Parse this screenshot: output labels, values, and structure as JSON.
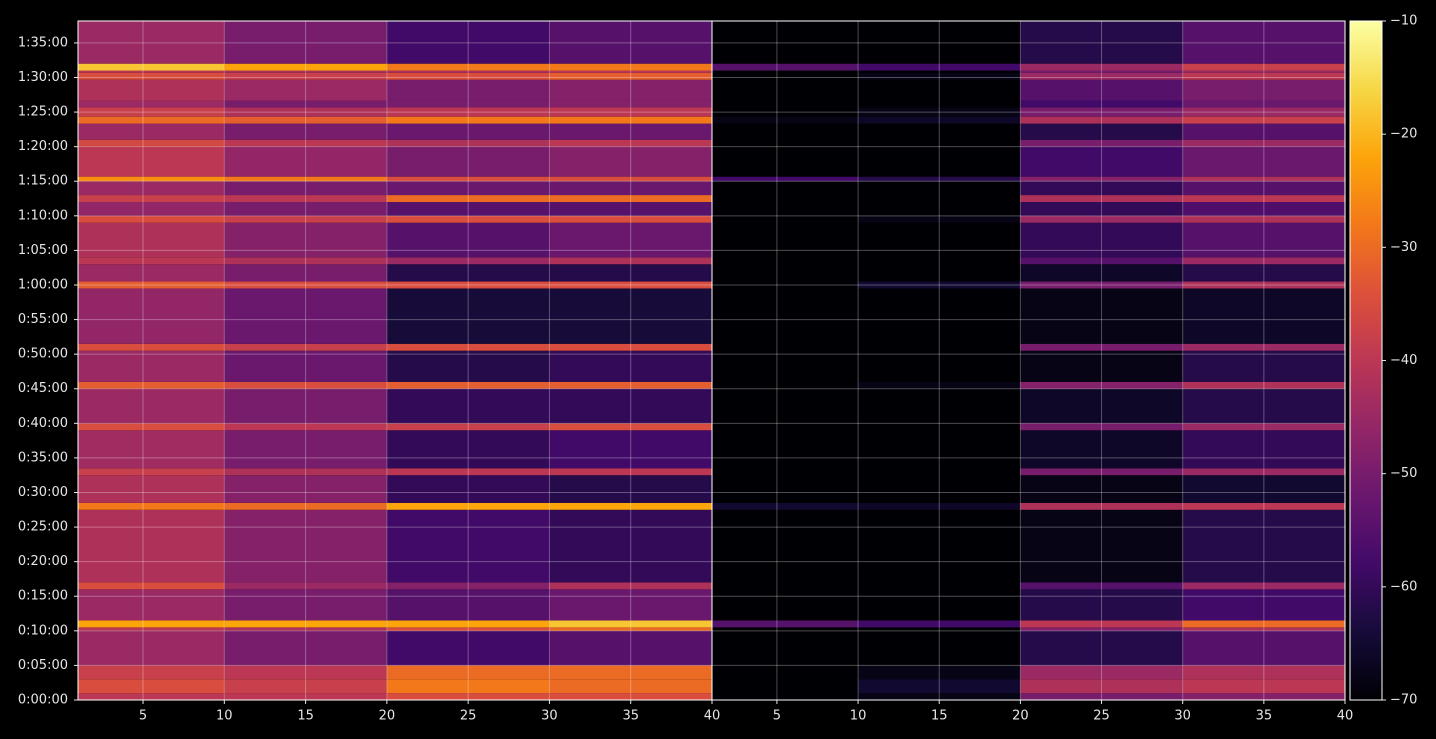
{
  "chart_data": {
    "type": "heatmap",
    "grid": true,
    "ylim": [
      0,
      5890
    ],
    "yticks": [
      {
        "value": 0,
        "label": "0:00:00"
      },
      {
        "value": 300,
        "label": "0:05:00"
      },
      {
        "value": 600,
        "label": "0:10:00"
      },
      {
        "value": 900,
        "label": "0:15:00"
      },
      {
        "value": 1200,
        "label": "0:20:00"
      },
      {
        "value": 1500,
        "label": "0:25:00"
      },
      {
        "value": 1800,
        "label": "0:30:00"
      },
      {
        "value": 2100,
        "label": "0:35:00"
      },
      {
        "value": 2400,
        "label": "0:40:00"
      },
      {
        "value": 2700,
        "label": "0:45:00"
      },
      {
        "value": 3000,
        "label": "0:50:00"
      },
      {
        "value": 3300,
        "label": "0:55:00"
      },
      {
        "value": 3600,
        "label": "1:00:00"
      },
      {
        "value": 3900,
        "label": "1:05:00"
      },
      {
        "value": 4200,
        "label": "1:10:00"
      },
      {
        "value": 4500,
        "label": "1:15:00"
      },
      {
        "value": 4800,
        "label": "1:20:00"
      },
      {
        "value": 5100,
        "label": "1:25:00"
      },
      {
        "value": 5400,
        "label": "1:30:00"
      },
      {
        "value": 5700,
        "label": "1:35:00"
      }
    ],
    "ybins": [
      0,
      60,
      180,
      300,
      600,
      630,
      690,
      960,
      1020,
      1650,
      1710,
      1950,
      2010,
      2340,
      2400,
      2700,
      2760,
      3030,
      3090,
      3570,
      3630,
      3780,
      3840,
      4140,
      4200,
      4320,
      4380,
      4500,
      4540,
      4800,
      4860,
      5000,
      5060,
      5140,
      5200,
      5380,
      5440,
      5460,
      5520,
      5890
    ],
    "panels": [
      {
        "xlim": [
          1,
          40
        ],
        "xticks": [
          5,
          10,
          15,
          20,
          25,
          30,
          35,
          40
        ],
        "xbins": [
          1,
          10,
          20,
          30,
          40
        ],
        "values": [
          [
            -40,
            -40,
            -35,
            -35
          ],
          [
            -35,
            -38,
            -28,
            -30
          ],
          [
            -38,
            -40,
            -30,
            -30
          ],
          [
            -45,
            -50,
            -58,
            -55
          ],
          [
            -40,
            -42,
            -35,
            -30
          ],
          [
            -22,
            -22,
            -22,
            -18
          ],
          [
            -45,
            -50,
            -55,
            -52
          ],
          [
            -35,
            -45,
            -48,
            -42
          ],
          [
            -42,
            -48,
            -58,
            -60
          ],
          [
            -28,
            -30,
            -22,
            -22
          ],
          [
            -42,
            -48,
            -60,
            -62
          ],
          [
            -38,
            -42,
            -40,
            -40
          ],
          [
            -44,
            -50,
            -60,
            -58
          ],
          [
            -35,
            -40,
            -38,
            -35
          ],
          [
            -45,
            -50,
            -60,
            -60
          ],
          [
            -32,
            -35,
            -32,
            -32
          ],
          [
            -45,
            -52,
            -62,
            -60
          ],
          [
            -35,
            -38,
            -35,
            -35
          ],
          [
            -46,
            -52,
            -64,
            -64
          ],
          [
            -32,
            -35,
            -35,
            -35
          ],
          [
            -45,
            -50,
            -62,
            -62
          ],
          [
            -40,
            -42,
            -45,
            -42
          ],
          [
            -42,
            -48,
            -55,
            -52
          ],
          [
            -35,
            -38,
            -35,
            -35
          ],
          [
            -46,
            -50,
            -55,
            -55
          ],
          [
            -38,
            -40,
            -30,
            -30
          ],
          [
            -45,
            -50,
            -52,
            -52
          ],
          [
            -25,
            -28,
            -35,
            -35
          ],
          [
            -40,
            -46,
            -50,
            -48
          ],
          [
            -36,
            -40,
            -42,
            -40
          ],
          [
            -45,
            -50,
            -52,
            -52
          ],
          [
            -30,
            -32,
            -28,
            -28
          ],
          [
            -38,
            -42,
            -40,
            -40
          ],
          [
            -45,
            -50,
            -50,
            -48
          ],
          [
            -42,
            -45,
            -50,
            -48
          ],
          [
            -35,
            -38,
            -35,
            -32
          ],
          [
            -40,
            -42,
            -42,
            -40
          ],
          [
            -18,
            -22,
            -28,
            -28
          ],
          [
            -45,
            -50,
            -58,
            -55
          ]
        ]
      },
      {
        "xlim": [
          1,
          40
        ],
        "xticks": [
          5,
          10,
          15,
          20,
          25,
          30,
          35,
          40
        ],
        "xbins": [
          1,
          10,
          20,
          30,
          40
        ],
        "values": [
          [
            -70,
            -68,
            -50,
            -48
          ],
          [
            -70,
            -65,
            -42,
            -40
          ],
          [
            -70,
            -68,
            -45,
            -42
          ],
          [
            -70,
            -70,
            -62,
            -55
          ],
          [
            -70,
            -70,
            -48,
            -42
          ],
          [
            -55,
            -58,
            -40,
            -30
          ],
          [
            -70,
            -70,
            -62,
            -58
          ],
          [
            -70,
            -70,
            -55,
            -45
          ],
          [
            -70,
            -70,
            -68,
            -62
          ],
          [
            -65,
            -66,
            -42,
            -40
          ],
          [
            -70,
            -70,
            -68,
            -65
          ],
          [
            -70,
            -70,
            -50,
            -45
          ],
          [
            -70,
            -70,
            -66,
            -60
          ],
          [
            -70,
            -70,
            -50,
            -45
          ],
          [
            -70,
            -70,
            -66,
            -62
          ],
          [
            -70,
            -68,
            -48,
            -42
          ],
          [
            -70,
            -70,
            -68,
            -62
          ],
          [
            -70,
            -70,
            -50,
            -45
          ],
          [
            -70,
            -70,
            -68,
            -66
          ],
          [
            -70,
            -65,
            -50,
            -42
          ],
          [
            -70,
            -70,
            -66,
            -62
          ],
          [
            -70,
            -70,
            -55,
            -45
          ],
          [
            -70,
            -70,
            -60,
            -55
          ],
          [
            -70,
            -68,
            -45,
            -42
          ],
          [
            -70,
            -70,
            -60,
            -56
          ],
          [
            -70,
            -70,
            -42,
            -40
          ],
          [
            -70,
            -70,
            -60,
            -55
          ],
          [
            -58,
            -62,
            -48,
            -42
          ],
          [
            -70,
            -70,
            -58,
            -52
          ],
          [
            -70,
            -70,
            -50,
            -45
          ],
          [
            -70,
            -70,
            -62,
            -55
          ],
          [
            -68,
            -66,
            -42,
            -38
          ],
          [
            -70,
            -68,
            -50,
            -45
          ],
          [
            -70,
            -70,
            -58,
            -52
          ],
          [
            -70,
            -70,
            -55,
            -50
          ],
          [
            -70,
            -68,
            -45,
            -40
          ],
          [
            -70,
            -70,
            -50,
            -45
          ],
          [
            -55,
            -58,
            -45,
            -38
          ],
          [
            -70,
            -70,
            -62,
            -55
          ]
        ]
      }
    ],
    "colorbar": {
      "lim": [
        -70,
        -10
      ],
      "ticks": [
        {
          "value": -70,
          "label": "−70"
        },
        {
          "value": -60,
          "label": "−60"
        },
        {
          "value": -50,
          "label": "−50"
        },
        {
          "value": -40,
          "label": "−40"
        },
        {
          "value": -30,
          "label": "−30"
        },
        {
          "value": -20,
          "label": "−20"
        },
        {
          "value": -10,
          "label": "−10"
        }
      ]
    }
  }
}
